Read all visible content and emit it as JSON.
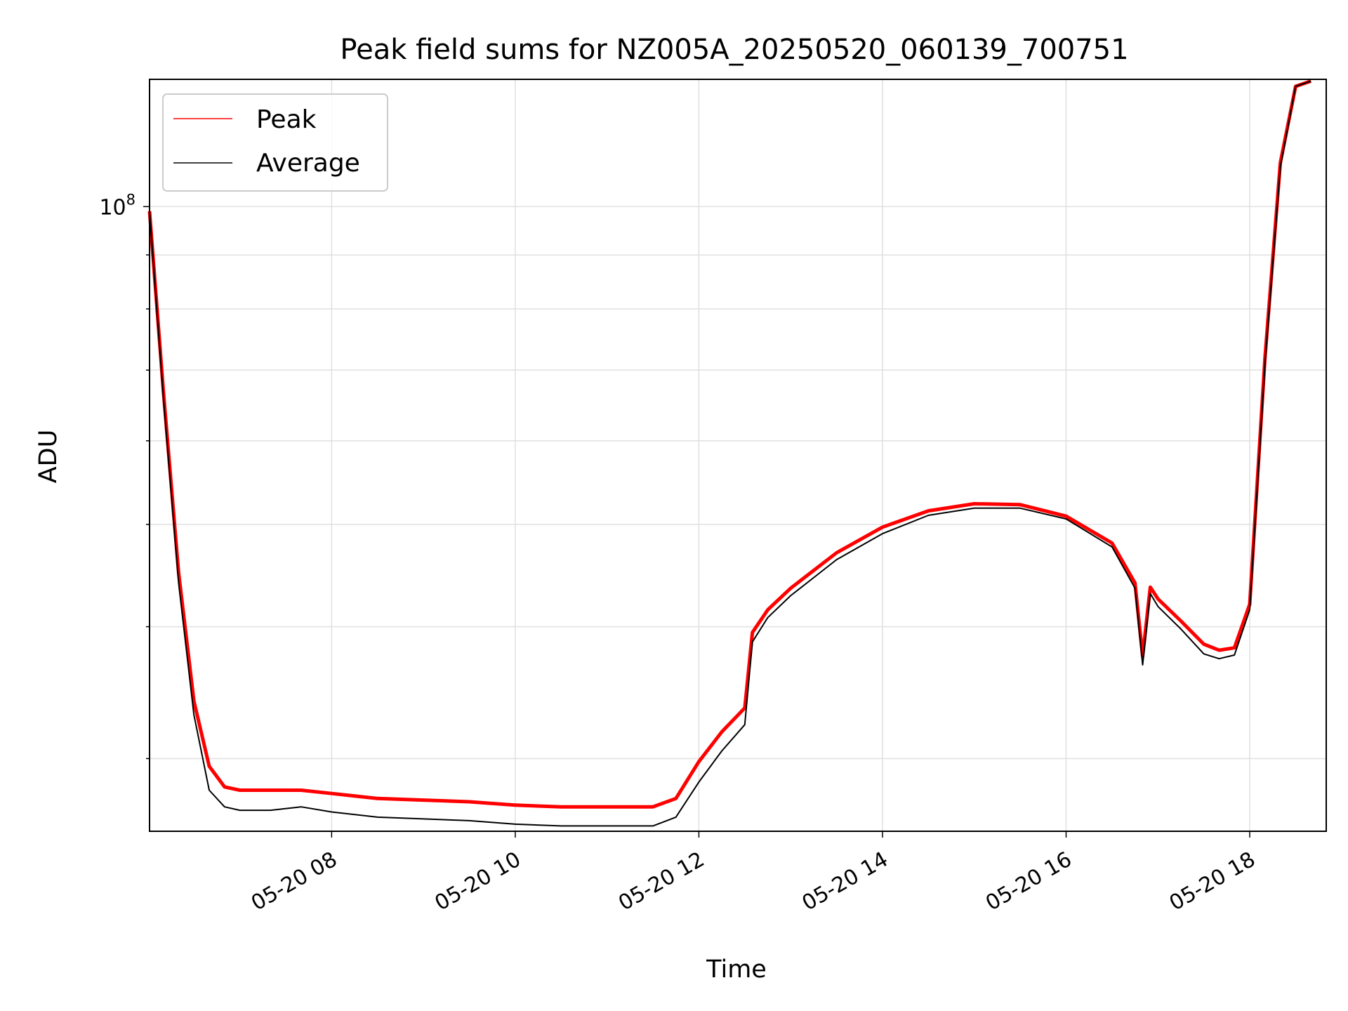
{
  "chart_data": {
    "type": "line",
    "title": "Peak field sums for NZ005A_20250520_060139_700751",
    "xlabel": "Time",
    "ylabel": "ADU",
    "yscale": "log",
    "grid": true,
    "legend_position": "top-left",
    "xlim": [
      "2025-05-20 06:01",
      "2025-05-20 18:50"
    ],
    "ylim": [
      25600000.0,
      132000000.0
    ],
    "x_ticks": [
      "05-20 08",
      "05-20 10",
      "05-20 12",
      "05-20 14",
      "05-20 16",
      "05-20 18"
    ],
    "y_tick_major": "10^8",
    "colors": {
      "peak": "#ff0000",
      "average": "#000000"
    },
    "series": [
      {
        "name": "Peak",
        "color": "#ff0000",
        "x": [
          "2025-05-20 06:01",
          "2025-05-20 06:10",
          "2025-05-20 06:20",
          "2025-05-20 06:30",
          "2025-05-20 06:40",
          "2025-05-20 06:50",
          "2025-05-20 07:00",
          "2025-05-20 07:20",
          "2025-05-20 07:40",
          "2025-05-20 08:00",
          "2025-05-20 08:30",
          "2025-05-20 09:00",
          "2025-05-20 09:30",
          "2025-05-20 10:00",
          "2025-05-20 10:30",
          "2025-05-20 11:00",
          "2025-05-20 11:30",
          "2025-05-20 11:45",
          "2025-05-20 12:00",
          "2025-05-20 12:15",
          "2025-05-20 12:30",
          "2025-05-20 12:35",
          "2025-05-20 12:45",
          "2025-05-20 13:00",
          "2025-05-20 13:30",
          "2025-05-20 14:00",
          "2025-05-20 14:30",
          "2025-05-20 15:00",
          "2025-05-20 15:30",
          "2025-05-20 16:00",
          "2025-05-20 16:30",
          "2025-05-20 16:45",
          "2025-05-20 16:50",
          "2025-05-20 16:55",
          "2025-05-20 17:00",
          "2025-05-20 17:15",
          "2025-05-20 17:30",
          "2025-05-20 17:40",
          "2025-05-20 17:50",
          "2025-05-20 18:00",
          "2025-05-20 18:10",
          "2025-05-20 18:20",
          "2025-05-20 18:30",
          "2025-05-20 18:40"
        ],
        "values": [
          99000000,
          67000000,
          45000000,
          34000000,
          29500000,
          28200000,
          28000000,
          28000000,
          28000000,
          27800000,
          27500000,
          27400000,
          27300000,
          27100000,
          27000000,
          27000000,
          27000000,
          27500000,
          29800000,
          31800000,
          33500000,
          39500000,
          41500000,
          43500000,
          47000000,
          49700000,
          51500000,
          52300000,
          52200000,
          50900000,
          48000000,
          44000000,
          37500000,
          43600000,
          42500000,
          40500000,
          38500000,
          38000000,
          38200000,
          42000000,
          72000000,
          110000000,
          130000000,
          131500000
        ]
      },
      {
        "name": "Average",
        "color": "#000000",
        "x": [
          "2025-05-20 06:01",
          "2025-05-20 06:10",
          "2025-05-20 06:20",
          "2025-05-20 06:30",
          "2025-05-20 06:40",
          "2025-05-20 06:50",
          "2025-05-20 07:00",
          "2025-05-20 07:20",
          "2025-05-20 07:40",
          "2025-05-20 08:00",
          "2025-05-20 08:30",
          "2025-05-20 09:00",
          "2025-05-20 09:30",
          "2025-05-20 10:00",
          "2025-05-20 10:30",
          "2025-05-20 11:00",
          "2025-05-20 11:30",
          "2025-05-20 11:45",
          "2025-05-20 12:00",
          "2025-05-20 12:15",
          "2025-05-20 12:30",
          "2025-05-20 12:35",
          "2025-05-20 12:45",
          "2025-05-20 13:00",
          "2025-05-20 13:30",
          "2025-05-20 14:00",
          "2025-05-20 14:30",
          "2025-05-20 15:00",
          "2025-05-20 15:30",
          "2025-05-20 16:00",
          "2025-05-20 16:30",
          "2025-05-20 16:45",
          "2025-05-20 16:50",
          "2025-05-20 16:55",
          "2025-05-20 17:00",
          "2025-05-20 17:15",
          "2025-05-20 17:30",
          "2025-05-20 17:40",
          "2025-05-20 17:50",
          "2025-05-20 18:00",
          "2025-05-20 18:10",
          "2025-05-20 18:20",
          "2025-05-20 18:30",
          "2025-05-20 18:40"
        ],
        "values": [
          99000000,
          66000000,
          44000000,
          33000000,
          28000000,
          27000000,
          26800000,
          26800000,
          27000000,
          26700000,
          26400000,
          26300000,
          26200000,
          26000000,
          25900000,
          25900000,
          25900000,
          26400000,
          28500000,
          30500000,
          32300000,
          38700000,
          40800000,
          42800000,
          46300000,
          49000000,
          51000000,
          51800000,
          51800000,
          50600000,
          47600000,
          43500000,
          36800000,
          43000000,
          41800000,
          39800000,
          37700000,
          37300000,
          37600000,
          41500000,
          71000000,
          109000000,
          130000000,
          131500000
        ]
      }
    ]
  }
}
